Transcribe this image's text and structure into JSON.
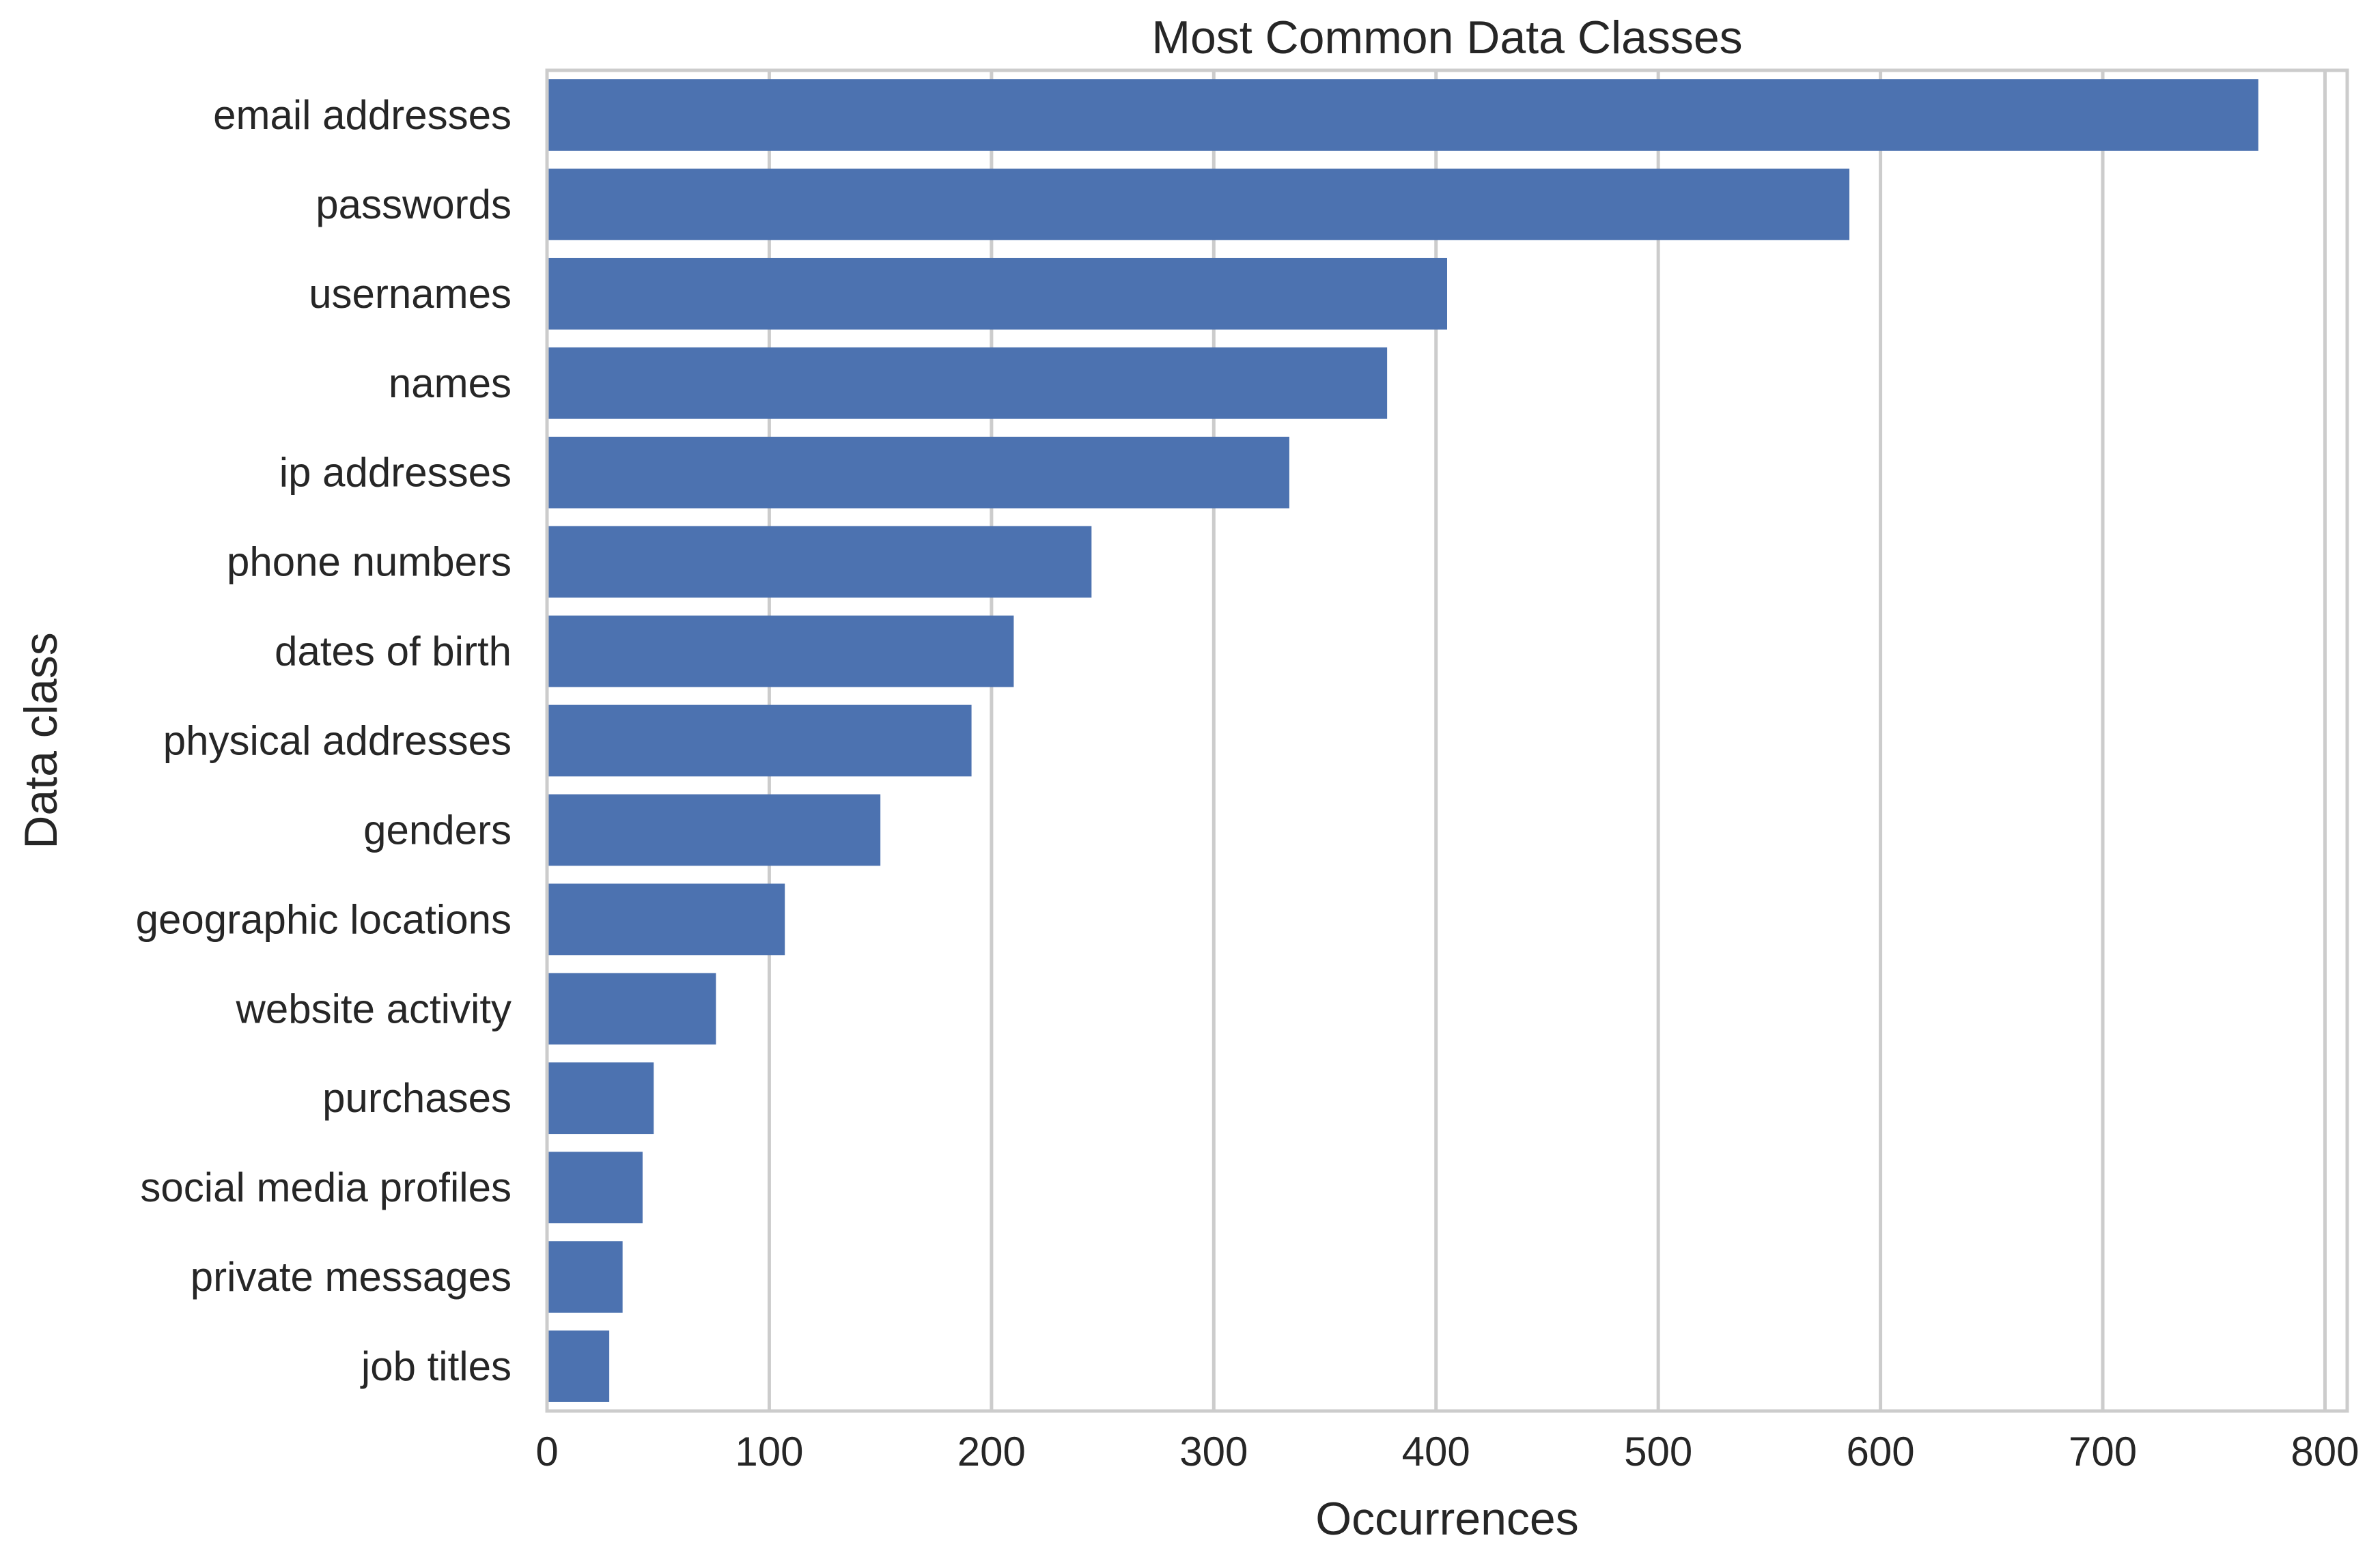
{
  "chart_data": {
    "type": "bar",
    "orientation": "horizontal",
    "title": "Most Common Data Classes",
    "xlabel": "Occurrences",
    "ylabel": "Data class",
    "categories": [
      "email addresses",
      "passwords",
      "usernames",
      "names",
      "ip addresses",
      "phone numbers",
      "dates of birth",
      "physical addresses",
      "genders",
      "geographic locations",
      "website activity",
      "purchases",
      "social media profiles",
      "private messages",
      "job titles"
    ],
    "values": [
      770,
      586,
      405,
      378,
      334,
      245,
      210,
      191,
      150,
      107,
      76,
      48,
      43,
      34,
      28
    ],
    "xlim": [
      0,
      810
    ],
    "xticks": [
      0,
      100,
      200,
      300,
      400,
      500,
      600,
      700,
      800
    ],
    "grid": true,
    "bar_color": "#4c72b0"
  }
}
